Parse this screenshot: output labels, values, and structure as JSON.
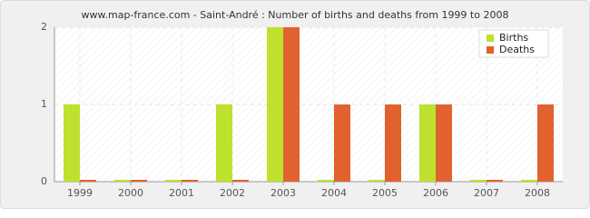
{
  "chart_data": {
    "type": "bar",
    "title": "www.map-france.com - Saint-André : Number of births and deaths from 1999 to 2008",
    "categories": [
      "1999",
      "2000",
      "2001",
      "2002",
      "2003",
      "2004",
      "2005",
      "2006",
      "2007",
      "2008"
    ],
    "series": [
      {
        "name": "Births",
        "color": "#bde12d",
        "values": [
          1,
          0,
          0,
          1,
          2,
          0,
          0,
          1,
          0,
          0
        ]
      },
      {
        "name": "Deaths",
        "color": "#e2622f",
        "values": [
          0,
          0,
          0,
          0,
          2,
          1,
          1,
          1,
          0,
          1
        ]
      }
    ],
    "ylim": [
      0,
      2
    ],
    "yticks": [
      0,
      1,
      2
    ],
    "grid": true,
    "legend": "top-right"
  }
}
